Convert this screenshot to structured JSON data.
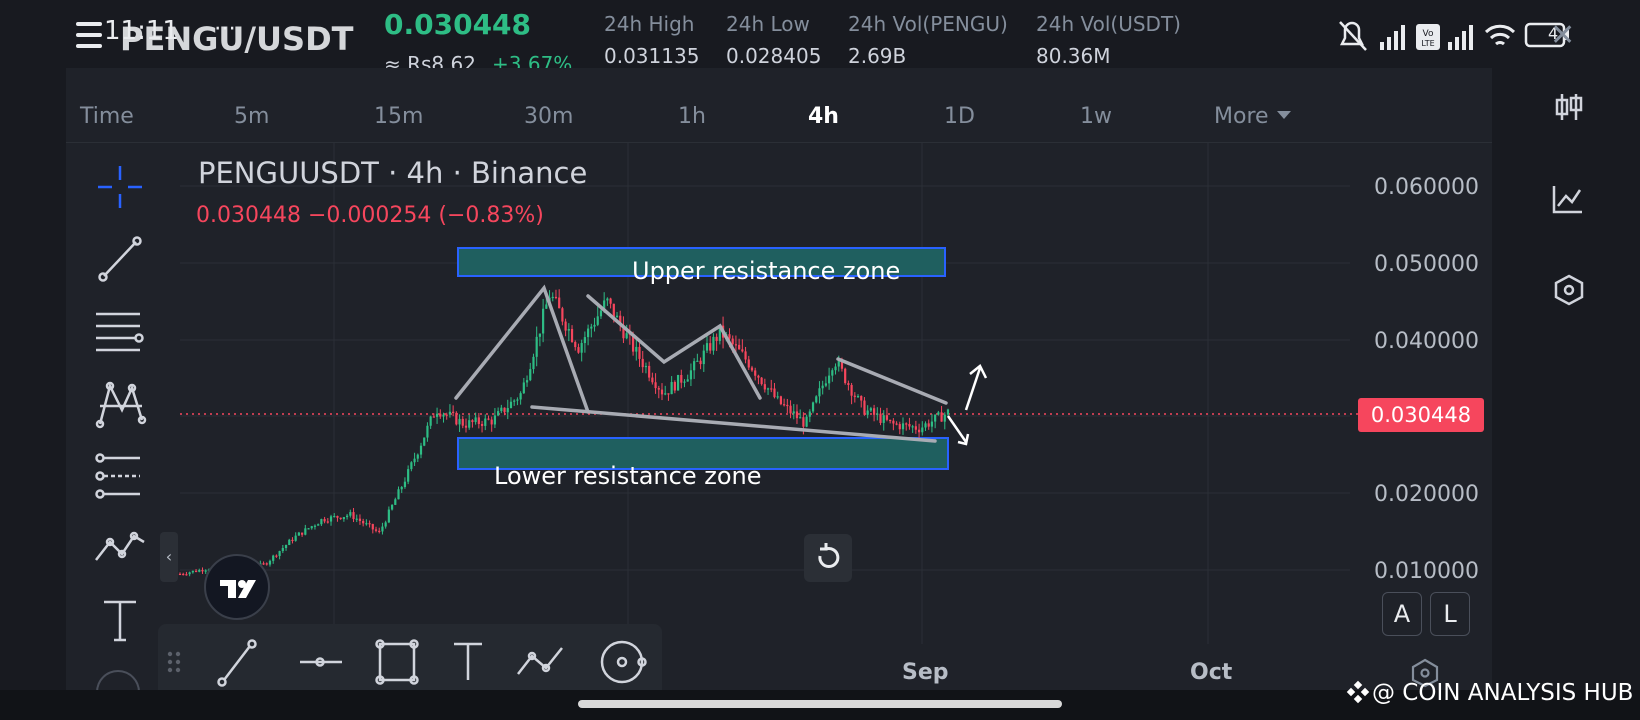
{
  "status_bar": {
    "time": "11:11",
    "dots": "⋯",
    "battery": "4"
  },
  "header": {
    "pair": "PENGU/USDT",
    "last_price": "0.030448",
    "fiat_price": "≈ Rs8.62",
    "change_pct": "+3.67%",
    "stats": [
      {
        "label": "24h High",
        "value": "0.031135"
      },
      {
        "label": "24h Low",
        "value": "0.028405"
      },
      {
        "label": "24h Vol(PENGU)",
        "value": "2.69B"
      },
      {
        "label": "24h Vol(USDT)",
        "value": "80.36M"
      }
    ]
  },
  "timeframes": [
    {
      "label": "Time"
    },
    {
      "label": "5m"
    },
    {
      "label": "15m"
    },
    {
      "label": "30m"
    },
    {
      "label": "1h"
    },
    {
      "label": "4h",
      "active": true
    },
    {
      "label": "1D"
    },
    {
      "label": "1w"
    },
    {
      "label": "More"
    }
  ],
  "chart": {
    "title": "PENGUUSDT · 4h · Binance",
    "change_line": "0.030448  −0.000254 (−0.83%)",
    "current_price_tag": "0.030448",
    "y_ticks": [
      "0.060000",
      "0.050000",
      "0.040000",
      "0.020000",
      "0.010000"
    ],
    "x_ticks": [
      "Sep",
      "Oct"
    ],
    "annotations": {
      "upper_zone": "Upper resistance zone",
      "lower_zone": "Lower resistance zone"
    },
    "colors": {
      "up": "#2ebd85",
      "down": "#f6465d",
      "zone": "#1f5f5f",
      "zone_border": "#2962ff"
    }
  },
  "chart_data": {
    "type": "candlestick",
    "title": "PENGUUSDT · 4h · Binance",
    "x_ticks": [
      "Sep",
      "Oct"
    ],
    "y_ticks": [
      0.06,
      0.05,
      0.04,
      0.02,
      0.01
    ],
    "ylim": [
      0.0,
      0.064
    ],
    "current_price": 0.030448,
    "trend_path": [
      0.0095,
      0.0102,
      0.0098,
      0.0108,
      0.0142,
      0.0166,
      0.0172,
      0.0148,
      0.0225,
      0.031,
      0.029,
      0.0295,
      0.033,
      0.046,
      0.039,
      0.045,
      0.0385,
      0.033,
      0.036,
      0.041,
      0.037,
      0.032,
      0.029,
      0.0375,
      0.031,
      0.029,
      0.0285,
      0.0305
    ],
    "zones": [
      {
        "label": "Upper resistance zone",
        "from": 0.048,
        "to": 0.052
      },
      {
        "label": "Lower resistance zone",
        "from": 0.0235,
        "to": 0.0275
      }
    ],
    "grid": true
  },
  "tools_left": [
    "crosshair-icon",
    "trend-line-icon",
    "fib-lines-icon",
    "pattern-icon",
    "forecast-icon",
    "path-icon",
    "text-icon"
  ],
  "tools_bottom": [
    "trend-line-icon",
    "horizontal-line-icon",
    "rectangle-icon",
    "text-icon",
    "path-icon",
    "circle-icon"
  ],
  "right_panel": [
    "candlestick-type-icon",
    "indicators-icon",
    "settings-hex-icon"
  ],
  "buttons": {
    "auto": "A",
    "log": "L",
    "collapse": "‹"
  },
  "watermark": "@ COIN ANALYSIS HUB"
}
